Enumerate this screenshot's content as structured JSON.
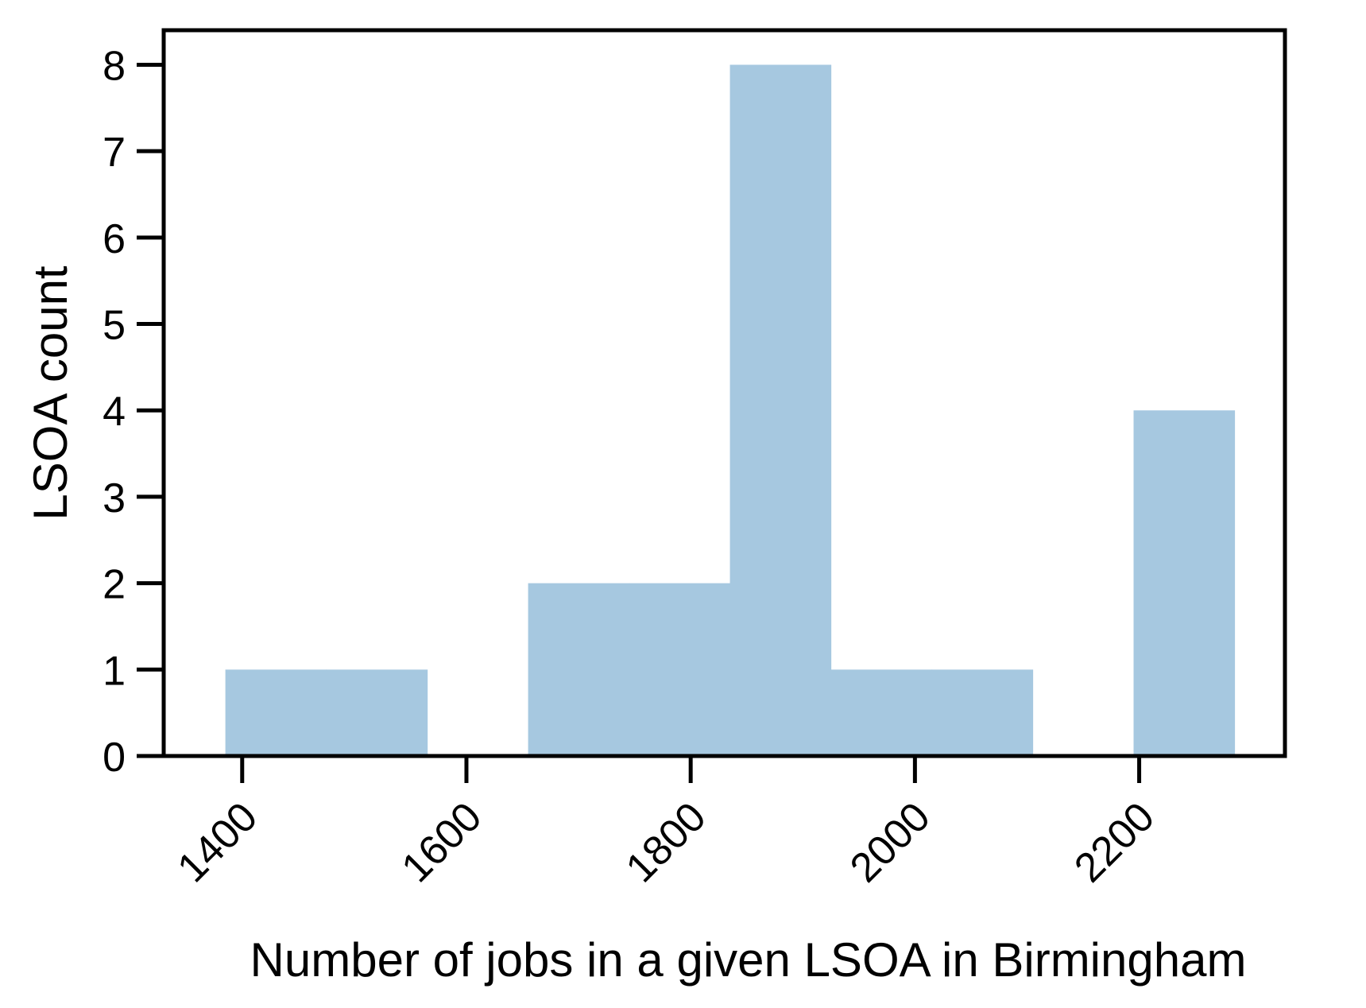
{
  "chart_data": {
    "type": "histogram",
    "title": "",
    "xlabel": "Number of jobs in a given LSOA in Birmingham",
    "ylabel": "LSOA count",
    "xlim": [
      1330,
      2330
    ],
    "ylim": [
      0,
      8.4
    ],
    "xticks": [
      1400,
      1600,
      1800,
      2000,
      2200
    ],
    "yticks": [
      0,
      1,
      2,
      3,
      4,
      5,
      6,
      7,
      8
    ],
    "bins": [
      {
        "start": 1385,
        "end": 1475,
        "count": 1
      },
      {
        "start": 1475,
        "end": 1565,
        "count": 1
      },
      {
        "start": 1565,
        "end": 1655,
        "count": 0
      },
      {
        "start": 1655,
        "end": 1745,
        "count": 2
      },
      {
        "start": 1745,
        "end": 1835,
        "count": 2
      },
      {
        "start": 1835,
        "end": 1925,
        "count": 8
      },
      {
        "start": 1925,
        "end": 2015,
        "count": 1
      },
      {
        "start": 2015,
        "end": 2105,
        "count": 1
      },
      {
        "start": 2105,
        "end": 2195,
        "count": 0
      },
      {
        "start": 2195,
        "end": 2285,
        "count": 4
      }
    ],
    "bar_color": "#a6c8e0",
    "grid": false,
    "legend": "none"
  }
}
